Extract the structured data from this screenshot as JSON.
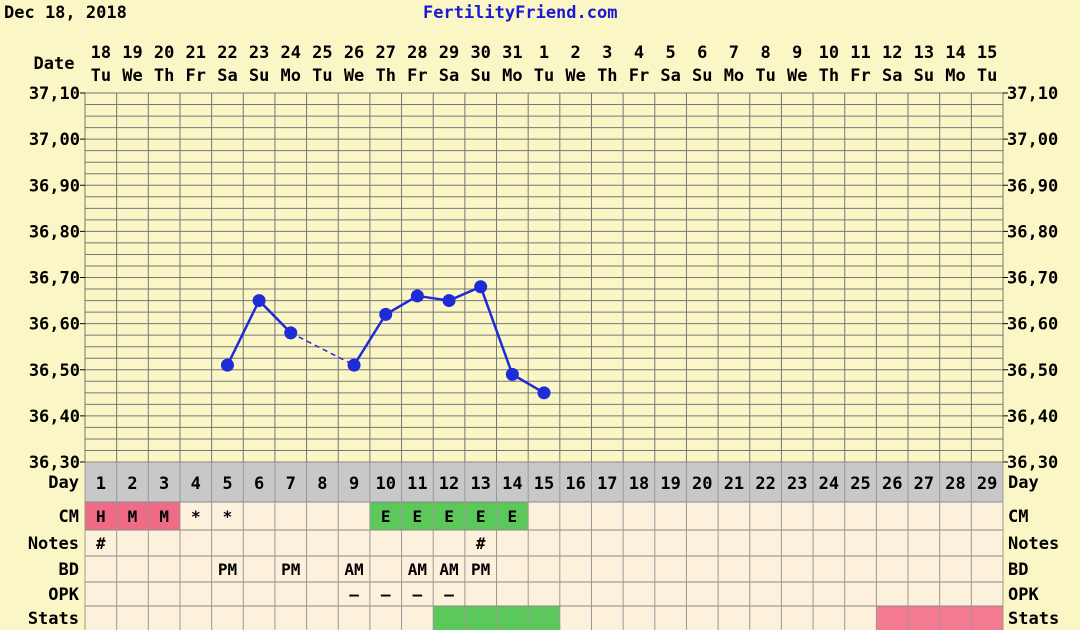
{
  "header": {
    "date": "Dec 18, 2018",
    "site": "FertilityFriend.com"
  },
  "row_labels": {
    "date": "Date",
    "day": "Day",
    "cm": "CM",
    "notes": "Notes",
    "bd": "BD",
    "opk": "OPK",
    "stats": "Stats"
  },
  "colors": {
    "background": "#fbf6c6",
    "line": "#1f2bd6",
    "day_row": "#c8c8c8",
    "row_fill": "#fdf1dc",
    "cm_red": "#ef6b86",
    "cm_green": "#5cc85c",
    "stats_green": "#5cc85c",
    "stats_pink": "#f47a92"
  },
  "chart_data": {
    "type": "line",
    "dates": [
      "18",
      "19",
      "20",
      "21",
      "22",
      "23",
      "24",
      "25",
      "26",
      "27",
      "28",
      "29",
      "30",
      "31",
      "1",
      "2",
      "3",
      "4",
      "5",
      "6",
      "7",
      "8",
      "9",
      "10",
      "11",
      "12",
      "13",
      "14",
      "15"
    ],
    "weekdays": [
      "Tu",
      "We",
      "Th",
      "Fr",
      "Sa",
      "Su",
      "Mo",
      "Tu",
      "We",
      "Th",
      "Fr",
      "Sa",
      "Su",
      "Mo",
      "Tu",
      "We",
      "Th",
      "Fr",
      "Sa",
      "Su",
      "Mo",
      "Tu",
      "We",
      "Th",
      "Fr",
      "Sa",
      "Su",
      "Mo",
      "Tu"
    ],
    "cycle_days": [
      1,
      2,
      3,
      4,
      5,
      6,
      7,
      8,
      9,
      10,
      11,
      12,
      13,
      14,
      15,
      16,
      17,
      18,
      19,
      20,
      21,
      22,
      23,
      24,
      25,
      26,
      27,
      28,
      29
    ],
    "y_ticks": [
      "37,10",
      "37,00",
      "36,90",
      "36,80",
      "36,70",
      "36,60",
      "36,50",
      "36,40",
      "36,30"
    ],
    "ylim": [
      36.3,
      37.1
    ],
    "temps": [
      {
        "day": 5,
        "value": 36.51
      },
      {
        "day": 6,
        "value": 36.65
      },
      {
        "day": 7,
        "value": 36.58
      },
      {
        "day": 9,
        "value": 36.51
      },
      {
        "day": 10,
        "value": 36.62
      },
      {
        "day": 11,
        "value": 36.66
      },
      {
        "day": 12,
        "value": 36.65
      },
      {
        "day": 13,
        "value": 36.68
      },
      {
        "day": 14,
        "value": 36.49
      },
      {
        "day": 15,
        "value": 36.45
      }
    ],
    "dashed_segments": [
      [
        7,
        9
      ]
    ],
    "cm": [
      {
        "day": 1,
        "label": "H",
        "fill": "cm_red"
      },
      {
        "day": 2,
        "label": "M",
        "fill": "cm_red"
      },
      {
        "day": 3,
        "label": "M",
        "fill": "cm_red"
      },
      {
        "day": 4,
        "label": "*"
      },
      {
        "day": 5,
        "label": "*"
      },
      {
        "day": 10,
        "label": "E",
        "fill": "cm_green"
      },
      {
        "day": 11,
        "label": "E",
        "fill": "cm_green"
      },
      {
        "day": 12,
        "label": "E",
        "fill": "cm_green"
      },
      {
        "day": 13,
        "label": "E",
        "fill": "cm_green"
      },
      {
        "day": 14,
        "label": "E",
        "fill": "cm_green"
      }
    ],
    "notes": [
      {
        "day": 1,
        "label": "#"
      },
      {
        "day": 13,
        "label": "#"
      }
    ],
    "bd": [
      {
        "day": 5,
        "label": "PM"
      },
      {
        "day": 7,
        "label": "PM"
      },
      {
        "day": 9,
        "label": "AM"
      },
      {
        "day": 11,
        "label": "AM"
      },
      {
        "day": 12,
        "label": "AM"
      },
      {
        "day": 13,
        "label": "PM"
      }
    ],
    "opk": [
      {
        "day": 9,
        "label": "–"
      },
      {
        "day": 10,
        "label": "–"
      },
      {
        "day": 11,
        "label": "–"
      },
      {
        "day": 12,
        "label": "–"
      }
    ],
    "stats": [
      {
        "day": 12,
        "fill": "stats_green"
      },
      {
        "day": 13,
        "fill": "stats_green"
      },
      {
        "day": 14,
        "fill": "stats_green"
      },
      {
        "day": 15,
        "fill": "stats_green"
      },
      {
        "day": 26,
        "fill": "stats_pink"
      },
      {
        "day": 27,
        "fill": "stats_pink"
      },
      {
        "day": 28,
        "fill": "stats_pink"
      },
      {
        "day": 29,
        "fill": "stats_pink"
      }
    ]
  }
}
